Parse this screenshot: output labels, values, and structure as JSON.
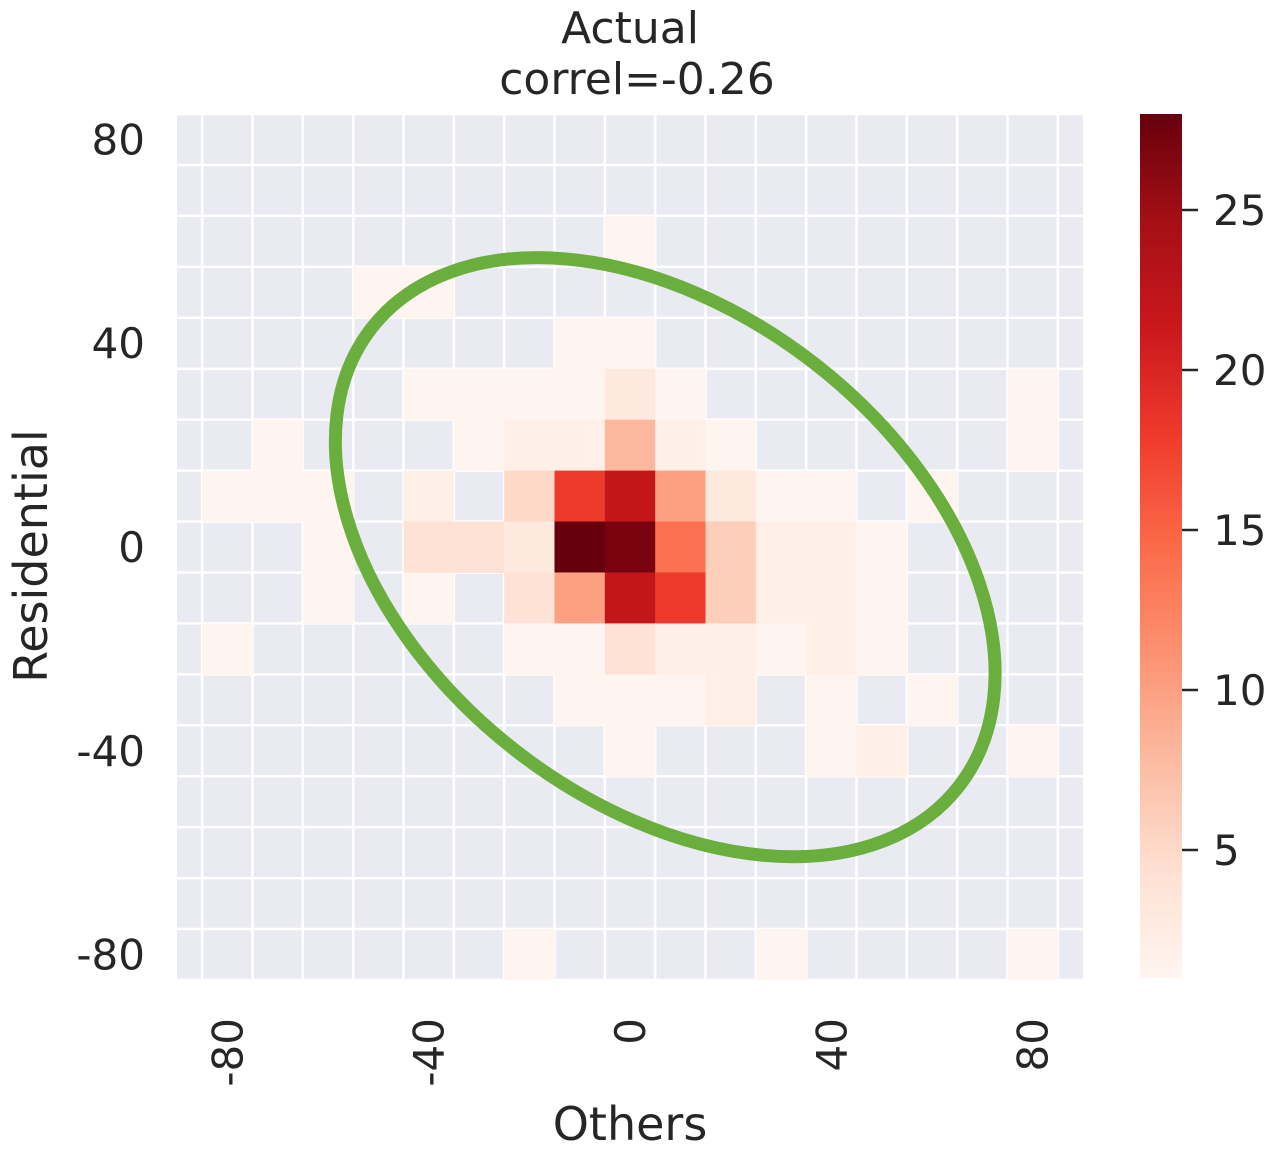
{
  "chart_data": {
    "type": "heatmap",
    "title": [
      "Actual",
      "correl=-0.26"
    ],
    "xlabel": "Others",
    "ylabel": "Residential",
    "x_bin_edges": [
      -85,
      -75,
      -65,
      -55,
      -45,
      -35,
      -25,
      -15,
      -5,
      5,
      15,
      25,
      35,
      45,
      55,
      65,
      75,
      85
    ],
    "y_bin_edges": [
      -85,
      -75,
      -65,
      -55,
      -45,
      -35,
      -25,
      -15,
      -5,
      5,
      15,
      25,
      35,
      45,
      55,
      65,
      75,
      85
    ],
    "xlim": [
      -90,
      90
    ],
    "ylim": [
      -85,
      85
    ],
    "xticks": [
      -80,
      -40,
      0,
      40,
      80
    ],
    "yticks": [
      80,
      40,
      0,
      -40,
      -80
    ],
    "colorbar": {
      "colormap": "Reds",
      "range": [
        1,
        28
      ],
      "ticks": [
        25,
        20,
        15,
        10,
        5
      ]
    },
    "cells": [
      {
        "x": 0,
        "y": 60,
        "v": 1
      },
      {
        "x": -50,
        "y": 50,
        "v": 1
      },
      {
        "x": -40,
        "y": 50,
        "v": 1
      },
      {
        "x": -10,
        "y": 40,
        "v": 1
      },
      {
        "x": 0,
        "y": 40,
        "v": 1
      },
      {
        "x": -40,
        "y": 30,
        "v": 1
      },
      {
        "x": -30,
        "y": 30,
        "v": 1
      },
      {
        "x": -20,
        "y": 30,
        "v": 1
      },
      {
        "x": -10,
        "y": 30,
        "v": 1
      },
      {
        "x": 0,
        "y": 30,
        "v": 3
      },
      {
        "x": 10,
        "y": 30,
        "v": 1
      },
      {
        "x": 80,
        "y": 30,
        "v": 1
      },
      {
        "x": -70,
        "y": 20,
        "v": 1
      },
      {
        "x": -30,
        "y": 20,
        "v": 1
      },
      {
        "x": -20,
        "y": 20,
        "v": 2
      },
      {
        "x": -10,
        "y": 20,
        "v": 2
      },
      {
        "x": 0,
        "y": 20,
        "v": 8
      },
      {
        "x": 10,
        "y": 20,
        "v": 2
      },
      {
        "x": 20,
        "y": 20,
        "v": 1
      },
      {
        "x": 80,
        "y": 20,
        "v": 1
      },
      {
        "x": -80,
        "y": 10,
        "v": 1
      },
      {
        "x": -70,
        "y": 10,
        "v": 1
      },
      {
        "x": -60,
        "y": 10,
        "v": 1
      },
      {
        "x": -40,
        "y": 10,
        "v": 2
      },
      {
        "x": -20,
        "y": 10,
        "v": 5
      },
      {
        "x": -10,
        "y": 10,
        "v": 18
      },
      {
        "x": 0,
        "y": 10,
        "v": 22
      },
      {
        "x": 10,
        "y": 10,
        "v": 10
      },
      {
        "x": 20,
        "y": 10,
        "v": 3
      },
      {
        "x": 30,
        "y": 10,
        "v": 1
      },
      {
        "x": 40,
        "y": 10,
        "v": 1
      },
      {
        "x": 60,
        "y": 10,
        "v": 1
      },
      {
        "x": -60,
        "y": 0,
        "v": 1
      },
      {
        "x": -40,
        "y": 0,
        "v": 4
      },
      {
        "x": -30,
        "y": 0,
        "v": 4
      },
      {
        "x": -20,
        "y": 0,
        "v": 3
      },
      {
        "x": -10,
        "y": 0,
        "v": 28
      },
      {
        "x": 0,
        "y": 0,
        "v": 27
      },
      {
        "x": 10,
        "y": 0,
        "v": 14
      },
      {
        "x": 20,
        "y": 0,
        "v": 6
      },
      {
        "x": 30,
        "y": 0,
        "v": 2
      },
      {
        "x": 40,
        "y": 0,
        "v": 2
      },
      {
        "x": 50,
        "y": 0,
        "v": 1
      },
      {
        "x": -60,
        "y": -10,
        "v": 1
      },
      {
        "x": -40,
        "y": -10,
        "v": 1
      },
      {
        "x": -20,
        "y": -10,
        "v": 4
      },
      {
        "x": -10,
        "y": -10,
        "v": 10
      },
      {
        "x": 0,
        "y": -10,
        "v": 22
      },
      {
        "x": 10,
        "y": -10,
        "v": 18
      },
      {
        "x": 20,
        "y": -10,
        "v": 6
      },
      {
        "x": 30,
        "y": -10,
        "v": 2
      },
      {
        "x": 40,
        "y": -10,
        "v": 2
      },
      {
        "x": 50,
        "y": -10,
        "v": 1
      },
      {
        "x": -80,
        "y": -20,
        "v": 1
      },
      {
        "x": -20,
        "y": -20,
        "v": 1
      },
      {
        "x": -10,
        "y": -20,
        "v": 1
      },
      {
        "x": 0,
        "y": -20,
        "v": 4
      },
      {
        "x": 10,
        "y": -20,
        "v": 2
      },
      {
        "x": 20,
        "y": -20,
        "v": 2
      },
      {
        "x": 30,
        "y": -20,
        "v": 1
      },
      {
        "x": 40,
        "y": -20,
        "v": 2
      },
      {
        "x": 50,
        "y": -20,
        "v": 1
      },
      {
        "x": -10,
        "y": -30,
        "v": 1
      },
      {
        "x": 0,
        "y": -30,
        "v": 1
      },
      {
        "x": 10,
        "y": -30,
        "v": 1
      },
      {
        "x": 20,
        "y": -30,
        "v": 2
      },
      {
        "x": 40,
        "y": -30,
        "v": 1
      },
      {
        "x": 60,
        "y": -30,
        "v": 1
      },
      {
        "x": 0,
        "y": -40,
        "v": 1
      },
      {
        "x": 40,
        "y": -40,
        "v": 1
      },
      {
        "x": 50,
        "y": -40,
        "v": 2
      },
      {
        "x": 80,
        "y": -40,
        "v": 1
      },
      {
        "x": -20,
        "y": -80,
        "v": 1
      },
      {
        "x": 30,
        "y": -80,
        "v": 1
      },
      {
        "x": 80,
        "y": -80,
        "v": 1
      }
    ],
    "ellipse": {
      "color": "#6aaf3d",
      "center": [
        7,
        -2
      ],
      "semi_major": 74,
      "semi_minor": 48,
      "angle_deg": -38
    },
    "grid": true
  }
}
